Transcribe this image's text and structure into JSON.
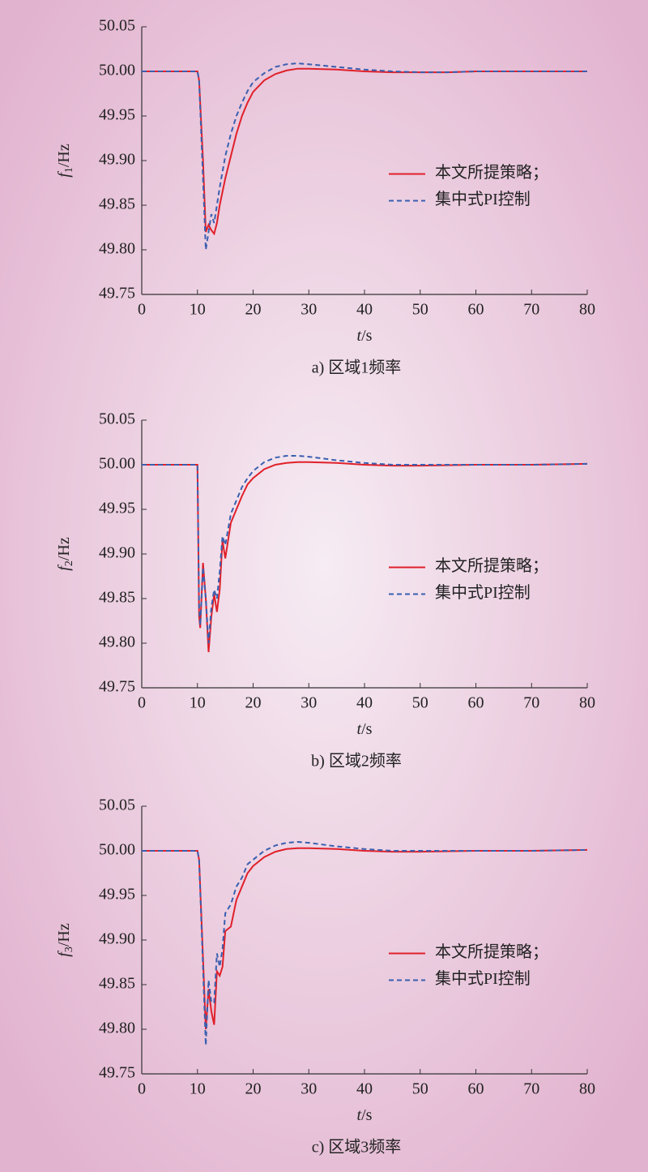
{
  "chart_data": [
    {
      "type": "line",
      "ylabel": [
        "f",
        "1",
        "/Hz"
      ],
      "xlabel": [
        "t",
        "/s"
      ],
      "caption": "a) 区域1频率",
      "x": [
        0,
        10,
        10.3,
        11,
        11.5,
        12,
        12.5,
        13,
        13.5,
        14,
        15,
        16,
        17,
        18,
        19,
        20,
        22,
        24,
        26,
        28,
        30,
        35,
        40,
        45,
        50,
        55,
        60,
        70,
        80
      ],
      "series": [
        {
          "name": "本文所提策略；",
          "color": "#e0202a",
          "style": "solid",
          "values": [
            50,
            50,
            49.99,
            49.9,
            49.82,
            49.828,
            49.822,
            49.818,
            49.83,
            49.85,
            49.88,
            49.905,
            49.93,
            49.95,
            49.965,
            49.977,
            49.99,
            49.997,
            50.001,
            50.003,
            50.003,
            50.002,
            50.0,
            49.999,
            49.999,
            49.999,
            50.0,
            50.0,
            50.0
          ]
        },
        {
          "name": "集中式PI控制",
          "color": "#3a5fb0",
          "style": "dashed",
          "values": [
            50,
            50,
            49.99,
            49.88,
            49.8,
            49.82,
            49.84,
            49.83,
            49.85,
            49.87,
            49.905,
            49.93,
            49.95,
            49.965,
            49.978,
            49.988,
            49.998,
            50.005,
            50.008,
            50.009,
            50.008,
            50.005,
            50.002,
            50.0,
            49.999,
            49.999,
            50.0,
            50.0,
            50.0
          ]
        }
      ],
      "xlim": [
        0,
        80
      ],
      "xticks": [
        0,
        10,
        20,
        30,
        40,
        50,
        60,
        70,
        80
      ],
      "ylim": [
        49.75,
        50.05
      ],
      "yticks": [
        49.75,
        {
          "value": 49.8,
          "label": "49.80"
        },
        49.85,
        {
          "value": 49.9,
          "label": "49.90"
        },
        49.95,
        {
          "value": 50,
          "label": "50.00"
        },
        50.05
      ],
      "legend": "center right"
    },
    {
      "type": "line",
      "ylabel": [
        "f",
        "2",
        "/Hz"
      ],
      "xlabel": [
        "t",
        "/s"
      ],
      "caption": "b) 区域2频率",
      "x": [
        0,
        10,
        10.3,
        10.5,
        11,
        11.5,
        12,
        12.5,
        13,
        13.5,
        14,
        14.5,
        15,
        16,
        17,
        18,
        19,
        20,
        22,
        24,
        26,
        28,
        30,
        35,
        40,
        45,
        50,
        60,
        70,
        80
      ],
      "series": [
        {
          "name": "本文所提策略；",
          "color": "#e0202a",
          "style": "solid",
          "values": [
            50,
            50,
            49.83,
            49.817,
            49.89,
            49.85,
            49.79,
            49.83,
            49.855,
            49.835,
            49.86,
            49.915,
            49.895,
            49.935,
            49.95,
            49.965,
            49.978,
            49.985,
            49.995,
            50.0,
            50.002,
            50.003,
            50.003,
            50.002,
            50.0,
            49.999,
            49.999,
            50.0,
            50.0,
            50.001
          ]
        },
        {
          "name": "集中式PI控制",
          "color": "#3a5fb0",
          "style": "dashed",
          "values": [
            50,
            50,
            49.84,
            49.82,
            49.885,
            49.85,
            49.8,
            49.84,
            49.86,
            49.85,
            49.88,
            49.92,
            49.91,
            49.945,
            49.96,
            49.975,
            49.985,
            49.993,
            50.003,
            50.008,
            50.01,
            50.01,
            50.009,
            50.005,
            50.002,
            50.0,
            50.0,
            50.0,
            50.0,
            50.001
          ]
        }
      ],
      "xlim": [
        0,
        80
      ],
      "xticks": [
        0,
        10,
        20,
        30,
        40,
        50,
        60,
        70,
        80
      ],
      "ylim": [
        49.75,
        50.05
      ],
      "yticks": [
        49.75,
        {
          "value": 49.8,
          "label": "49.80"
        },
        49.85,
        {
          "value": 49.9,
          "label": "49.90"
        },
        49.95,
        {
          "value": 50,
          "label": "50.00"
        },
        50.05
      ],
      "legend": "center right"
    },
    {
      "type": "line",
      "ylabel": [
        "f",
        "3",
        "/Hz"
      ],
      "xlabel": [
        "t",
        "/s"
      ],
      "caption": "c) 区域3频率",
      "x": [
        0,
        10,
        10.3,
        11,
        11.5,
        12,
        12.5,
        13,
        13.5,
        14,
        14.5,
        15,
        16,
        17,
        18,
        19,
        20,
        22,
        24,
        26,
        28,
        30,
        35,
        40,
        45,
        50,
        60,
        70,
        80
      ],
      "series": [
        {
          "name": "本文所提策略；",
          "color": "#e0202a",
          "style": "solid",
          "values": [
            50,
            50,
            49.99,
            49.88,
            49.8,
            49.845,
            49.82,
            49.805,
            49.865,
            49.86,
            49.87,
            49.91,
            49.915,
            49.945,
            49.96,
            49.975,
            49.983,
            49.993,
            49.999,
            50.002,
            50.003,
            50.003,
            50.002,
            50.0,
            49.999,
            49.999,
            50.0,
            50.0,
            50.001
          ]
        },
        {
          "name": "集中式PI控制",
          "color": "#3a5fb0",
          "style": "dashed",
          "values": [
            50,
            50,
            49.99,
            49.87,
            49.782,
            49.855,
            49.83,
            49.83,
            49.885,
            49.87,
            49.89,
            49.93,
            49.94,
            49.96,
            49.97,
            49.985,
            49.99,
            50.0,
            50.006,
            50.009,
            50.01,
            50.009,
            50.005,
            50.002,
            50.0,
            50.0,
            50.0,
            50.0,
            50.001
          ]
        }
      ],
      "xlim": [
        0,
        80
      ],
      "xticks": [
        0,
        10,
        20,
        30,
        40,
        50,
        60,
        70,
        80
      ],
      "ylim": [
        49.75,
        50.05
      ],
      "yticks": [
        49.75,
        {
          "value": 49.8,
          "label": "49.80"
        },
        49.85,
        {
          "value": 49.9,
          "label": "49.90"
        },
        49.95,
        {
          "value": 50,
          "label": "50.00"
        },
        50.05
      ],
      "legend": "center right"
    }
  ]
}
